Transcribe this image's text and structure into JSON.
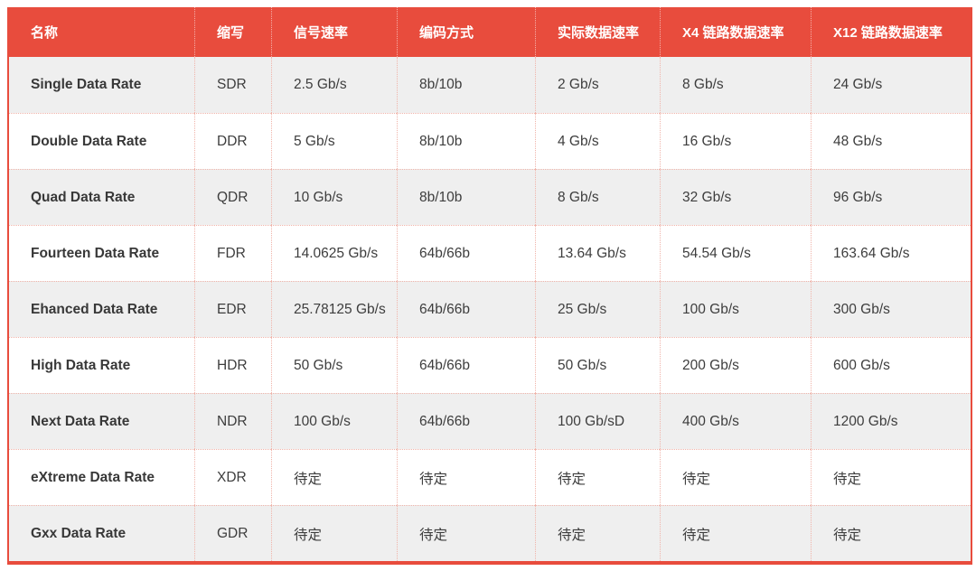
{
  "chart_data": {
    "type": "table",
    "columns": [
      "名称",
      "缩写",
      "信号速率",
      "编码方式",
      "实际数据速率",
      "X4 链路数据速率",
      "X12 链路数据速率"
    ],
    "rows": [
      [
        "Single Data Rate",
        "SDR",
        "2.5 Gb/s",
        "8b/10b",
        "2 Gb/s",
        "8 Gb/s",
        "24 Gb/s"
      ],
      [
        "Double Data Rate",
        "DDR",
        "5 Gb/s",
        "8b/10b",
        "4 Gb/s",
        "16 Gb/s",
        "48 Gb/s"
      ],
      [
        "Quad Data Rate",
        "QDR",
        "10 Gb/s",
        "8b/10b",
        "8 Gb/s",
        "32 Gb/s",
        "96 Gb/s"
      ],
      [
        "Fourteen Data Rate",
        "FDR",
        "14.0625 Gb/s",
        "64b/66b",
        "13.64 Gb/s",
        "54.54 Gb/s",
        "163.64 Gb/s"
      ],
      [
        "Ehanced Data Rate",
        "EDR",
        "25.78125 Gb/s",
        "64b/66b",
        "25 Gb/s",
        "100 Gb/s",
        "300 Gb/s"
      ],
      [
        "High Data Rate",
        "HDR",
        "50 Gb/s",
        "64b/66b",
        "50 Gb/s",
        "200 Gb/s",
        "600 Gb/s"
      ],
      [
        "Next Data Rate",
        "NDR",
        "100 Gb/s",
        "64b/66b",
        "100 Gb/sD",
        "400 Gb/s",
        "1200 Gb/s"
      ],
      [
        "eXtreme Data Rate",
        "XDR",
        "待定",
        "待定",
        "待定",
        "待定",
        "待定"
      ],
      [
        "Gxx Data Rate",
        "GDR",
        "待定",
        "待定",
        "待定",
        "待定",
        "待定"
      ]
    ]
  },
  "colors": {
    "header_bg": "#e84c3d",
    "header_text": "#ffffff",
    "border": "#e84c3d",
    "divider_dotted": "#f0b4aa",
    "row_alt_bg": "#efefef",
    "row_bg": "#ffffff",
    "body_text": "#3d3d3d"
  }
}
